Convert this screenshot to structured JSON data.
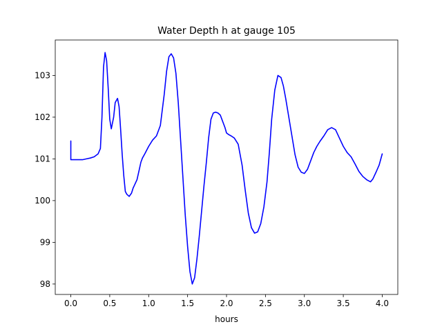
{
  "chart_data": {
    "type": "line",
    "title": "Water Depth h at gauge 105",
    "xlabel": "hours",
    "ylabel": "",
    "xlim": [
      -0.2,
      4.2
    ],
    "ylim": [
      97.75,
      103.85
    ],
    "xticks": [
      0.0,
      0.5,
      1.0,
      1.5,
      2.0,
      2.5,
      3.0,
      3.5,
      4.0
    ],
    "xtick_labels": [
      "0.0",
      "0.5",
      "1.0",
      "1.5",
      "2.0",
      "2.5",
      "3.0",
      "3.5",
      "4.0"
    ],
    "yticks": [
      98,
      99,
      100,
      101,
      102,
      103
    ],
    "ytick_labels": [
      "98",
      "99",
      "100",
      "101",
      "102",
      "103"
    ],
    "grid": false,
    "series": [
      {
        "color": "#0000ff",
        "x": [
          0.0,
          0.0,
          0.05,
          0.1,
          0.15,
          0.2,
          0.25,
          0.3,
          0.35,
          0.38,
          0.4,
          0.42,
          0.44,
          0.46,
          0.48,
          0.5,
          0.52,
          0.55,
          0.57,
          0.6,
          0.62,
          0.64,
          0.66,
          0.68,
          0.7,
          0.72,
          0.75,
          0.78,
          0.8,
          0.82,
          0.85,
          0.88,
          0.9,
          0.92,
          0.95,
          1.0,
          1.05,
          1.1,
          1.15,
          1.2,
          1.23,
          1.26,
          1.29,
          1.32,
          1.35,
          1.38,
          1.41,
          1.44,
          1.47,
          1.5,
          1.53,
          1.56,
          1.59,
          1.62,
          1.65,
          1.68,
          1.71,
          1.74,
          1.77,
          1.8,
          1.83,
          1.86,
          1.89,
          1.92,
          1.95,
          1.98,
          2.0,
          2.03,
          2.06,
          2.1,
          2.15,
          2.2,
          2.24,
          2.28,
          2.32,
          2.36,
          2.4,
          2.44,
          2.48,
          2.52,
          2.55,
          2.58,
          2.62,
          2.66,
          2.7,
          2.73,
          2.76,
          2.8,
          2.84,
          2.88,
          2.92,
          2.96,
          3.0,
          3.04,
          3.08,
          3.12,
          3.16,
          3.2,
          3.25,
          3.3,
          3.35,
          3.4,
          3.45,
          3.5,
          3.55,
          3.6,
          3.65,
          3.7,
          3.75,
          3.8,
          3.85,
          3.88,
          3.92,
          3.96,
          4.0
        ],
        "y": [
          101.43,
          100.98,
          100.98,
          100.98,
          100.98,
          101.0,
          101.02,
          101.05,
          101.12,
          101.25,
          102.0,
          103.2,
          103.55,
          103.35,
          102.7,
          101.95,
          101.72,
          102.0,
          102.35,
          102.45,
          102.25,
          101.7,
          101.1,
          100.6,
          100.22,
          100.15,
          100.1,
          100.18,
          100.3,
          100.38,
          100.5,
          100.75,
          100.92,
          101.02,
          101.12,
          101.3,
          101.45,
          101.55,
          101.8,
          102.55,
          103.1,
          103.45,
          103.52,
          103.42,
          103.05,
          102.35,
          101.45,
          100.55,
          99.65,
          98.9,
          98.3,
          98.0,
          98.15,
          98.6,
          99.15,
          99.75,
          100.35,
          100.9,
          101.5,
          101.95,
          102.1,
          102.12,
          102.1,
          102.05,
          101.9,
          101.75,
          101.62,
          101.58,
          101.55,
          101.5,
          101.35,
          100.85,
          100.25,
          99.7,
          99.35,
          99.22,
          99.25,
          99.45,
          99.85,
          100.45,
          101.15,
          101.95,
          102.65,
          103.0,
          102.95,
          102.75,
          102.45,
          102.0,
          101.55,
          101.1,
          100.8,
          100.68,
          100.65,
          100.75,
          100.95,
          101.15,
          101.3,
          101.42,
          101.55,
          101.7,
          101.75,
          101.7,
          101.5,
          101.3,
          101.15,
          101.05,
          100.88,
          100.7,
          100.58,
          100.5,
          100.45,
          100.52,
          100.68,
          100.85,
          101.12
        ]
      }
    ]
  }
}
